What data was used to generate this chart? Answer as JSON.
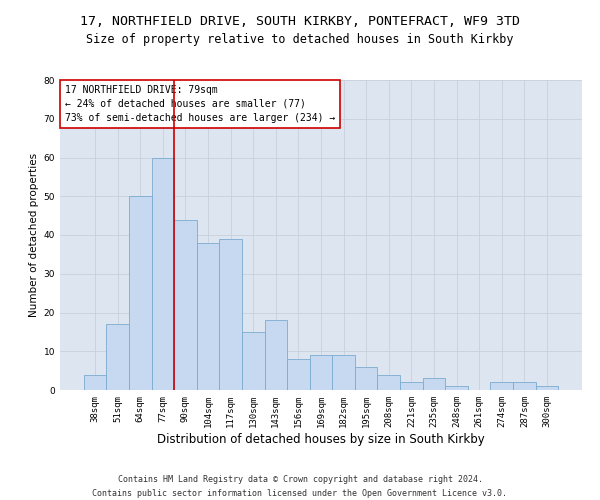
{
  "title_line1": "17, NORTHFIELD DRIVE, SOUTH KIRKBY, PONTEFRACT, WF9 3TD",
  "title_line2": "Size of property relative to detached houses in South Kirkby",
  "xlabel": "Distribution of detached houses by size in South Kirkby",
  "ylabel": "Number of detached properties",
  "categories": [
    "38sqm",
    "51sqm",
    "64sqm",
    "77sqm",
    "90sqm",
    "104sqm",
    "117sqm",
    "130sqm",
    "143sqm",
    "156sqm",
    "169sqm",
    "182sqm",
    "195sqm",
    "208sqm",
    "221sqm",
    "235sqm",
    "248sqm",
    "261sqm",
    "274sqm",
    "287sqm",
    "300sqm"
  ],
  "values": [
    4,
    17,
    50,
    60,
    44,
    38,
    39,
    15,
    18,
    8,
    9,
    9,
    6,
    4,
    2,
    3,
    1,
    0,
    2,
    2,
    1
  ],
  "bar_color": "#c6d9f0",
  "bar_edge_color": "#7aabcf",
  "vline_x_index": 3,
  "vline_color": "#cc0000",
  "annotation_line1": "17 NORTHFIELD DRIVE: 79sqm",
  "annotation_line2": "← 24% of detached houses are smaller (77)",
  "annotation_line3": "73% of semi-detached houses are larger (234) →",
  "annotation_box_color": "white",
  "annotation_box_edge": "#cc0000",
  "ylim": [
    0,
    80
  ],
  "yticks": [
    0,
    10,
    20,
    30,
    40,
    50,
    60,
    70,
    80
  ],
  "grid_color": "#c8d0dc",
  "bg_color": "#dde5f0",
  "footer_line1": "Contains HM Land Registry data © Crown copyright and database right 2024.",
  "footer_line2": "Contains public sector information licensed under the Open Government Licence v3.0.",
  "title_fontsize": 9.5,
  "subtitle_fontsize": 8.5,
  "xlabel_fontsize": 8.5,
  "ylabel_fontsize": 7.5,
  "tick_fontsize": 6.5,
  "annotation_fontsize": 7,
  "footer_fontsize": 6
}
